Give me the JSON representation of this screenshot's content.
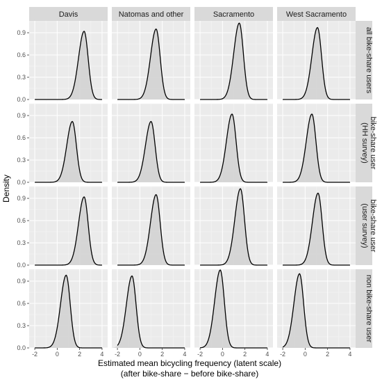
{
  "chart_data": {
    "type": "area",
    "ylabel": "Density",
    "xlabel_line1": "Estimated mean bicycling frequency (latent scale)",
    "xlabel_line2": "(after bike-share − before bike-share)",
    "xlim": [
      -2.5,
      4.5
    ],
    "ylim": [
      0,
      1.06
    ],
    "x_ticks": [
      -2,
      0,
      2,
      4
    ],
    "y_ticks": [
      0.0,
      0.3,
      0.6,
      0.9
    ],
    "y_tick_labels": [
      "0.0",
      "0.3",
      "0.6",
      "0.9"
    ],
    "x_tick_labels": [
      "-2",
      "0",
      "2",
      "4"
    ],
    "columns": [
      "Davis",
      "Natomas and other",
      "Sacramento",
      "West Sacramento"
    ],
    "rows": [
      {
        "label_lines": [
          "all bike-share users"
        ]
      },
      {
        "label_lines": [
          "bike-share user",
          "(HH survey)"
        ]
      },
      {
        "label_lines": [
          "bike-share user",
          "(user survey)"
        ]
      },
      {
        "label_lines": [
          "non bike-share user"
        ]
      }
    ],
    "panels": [
      [
        {
          "peak_x": 2.4,
          "peak_density": 0.92
        },
        {
          "peak_x": 1.45,
          "peak_density": 0.95
        },
        {
          "peak_x": 1.5,
          "peak_density": 1.03
        },
        {
          "peak_x": 1.1,
          "peak_density": 0.97
        }
      ],
      [
        {
          "peak_x": 1.35,
          "peak_density": 0.82
        },
        {
          "peak_x": 1.0,
          "peak_density": 0.82
        },
        {
          "peak_x": 0.85,
          "peak_density": 0.92
        },
        {
          "peak_x": 0.6,
          "peak_density": 0.92
        }
      ],
      [
        {
          "peak_x": 2.4,
          "peak_density": 0.92
        },
        {
          "peak_x": 1.45,
          "peak_density": 0.95
        },
        {
          "peak_x": 1.6,
          "peak_density": 1.03
        },
        {
          "peak_x": 1.15,
          "peak_density": 0.97
        }
      ],
      [
        {
          "peak_x": 0.8,
          "peak_density": 0.98
        },
        {
          "peak_x": -0.7,
          "peak_density": 0.97
        },
        {
          "peak_x": -0.2,
          "peak_density": 1.05
        },
        {
          "peak_x": -0.5,
          "peak_density": 1.0
        }
      ]
    ],
    "grid": true,
    "legend": "none"
  }
}
